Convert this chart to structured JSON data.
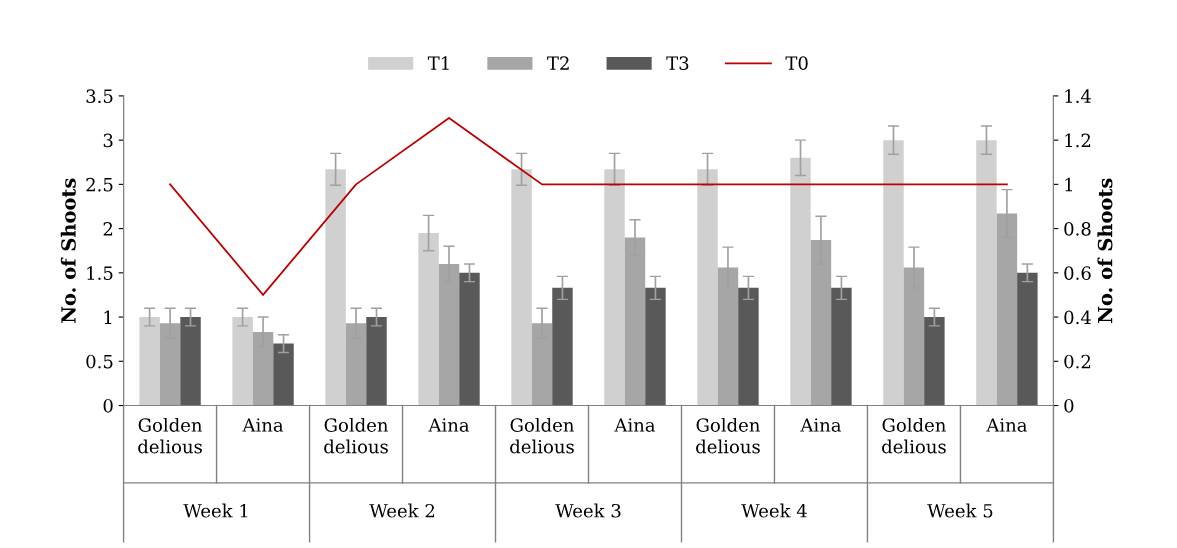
{
  "chart_data": {
    "type": "bar",
    "categories": [
      "Golden delious",
      "Aina",
      "Golden delious",
      "Aina",
      "Golden delious",
      "Aina",
      "Golden delious",
      "Aina",
      "Golden delious",
      "Aina"
    ],
    "annotations": [
      "Week 1",
      "Week 2",
      "Week 3",
      "Week 4",
      "Week 5"
    ],
    "ylabel": "No. of Shoots",
    "y2label": "No. of Shoots",
    "ylim": [
      0,
      3.5
    ],
    "yticks": [
      0,
      0.5,
      1,
      1.5,
      2,
      2.5,
      3,
      3.5
    ],
    "y2lim": [
      0,
      1.4
    ],
    "y2ticks": [
      0,
      0.2,
      0.4,
      0.6,
      0.8,
      1,
      1.2,
      1.4
    ],
    "legend": "top",
    "grid": false,
    "series": [
      {
        "name": "T1",
        "color": "#d0d0d0",
        "values": [
          1.0,
          1.0,
          2.67,
          1.95,
          2.67,
          2.67,
          2.67,
          2.8,
          3.0,
          3.0
        ],
        "errors": [
          0.1,
          0.1,
          0.18,
          0.2,
          0.18,
          0.18,
          0.18,
          0.2,
          0.16,
          0.16
        ]
      },
      {
        "name": "T2",
        "color": "#a6a6a6",
        "values": [
          0.93,
          0.83,
          0.93,
          1.6,
          0.93,
          1.9,
          1.56,
          1.87,
          1.56,
          2.17
        ],
        "errors": [
          0.17,
          0.17,
          0.17,
          0.2,
          0.17,
          0.2,
          0.23,
          0.27,
          0.23,
          0.27
        ]
      },
      {
        "name": "T3",
        "color": "#595959",
        "values": [
          1.0,
          0.7,
          1.0,
          1.5,
          1.33,
          1.33,
          1.33,
          1.33,
          1.0,
          1.5
        ],
        "errors": [
          0.1,
          0.1,
          0.1,
          0.1,
          0.13,
          0.13,
          0.13,
          0.13,
          0.1,
          0.1
        ]
      },
      {
        "name": "T0",
        "type": "line",
        "axis": "y2",
        "color": "#c00000",
        "values": [
          1.0,
          0.5,
          1.0,
          1.3,
          1.0,
          1.0,
          1.0,
          1.0,
          1.0,
          1.0
        ]
      }
    ]
  }
}
